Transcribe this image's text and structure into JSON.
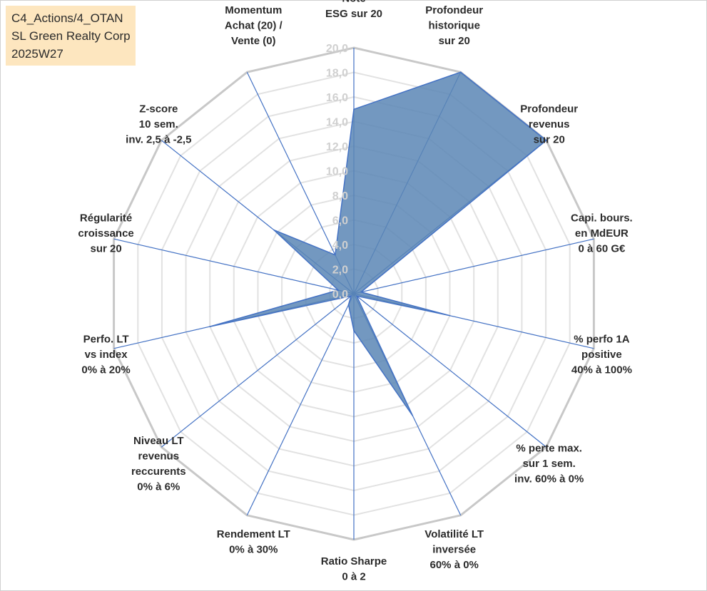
{
  "header": {
    "line1": "C4_Actions/4_OTAN",
    "line2": "SL Green Realty Corp",
    "line3": "2025W27"
  },
  "chart_data": {
    "type": "radar",
    "ylim": [
      0,
      20
    ],
    "tick_step": 2,
    "tick_labels": [
      "0,0",
      "2,0",
      "4,0",
      "6,0",
      "8,0",
      "10,0",
      "12,0",
      "14,0",
      "16,0",
      "18,0",
      "20,0"
    ],
    "grid": true,
    "legend": "none",
    "axes": [
      {
        "label": [
          "Note",
          "ESG sur 20"
        ],
        "value": 15.0
      },
      {
        "label": [
          "Profondeur",
          "historique",
          "sur 20"
        ],
        "value": 20.0
      },
      {
        "label": [
          "Profondeur",
          "revenus",
          "sur 20"
        ],
        "value": 20.0
      },
      {
        "label": [
          "Capi. bours.",
          "en MdEUR",
          "0 à 60 G€"
        ],
        "value": 0.6
      },
      {
        "label": [
          "% perfo 1A",
          "positive",
          "40% à 100%"
        ],
        "value": 8.0
      },
      {
        "label": [
          "% perte max.",
          "sur 1 sem.",
          "inv. 60% à 0%"
        ],
        "value": 0.3
      },
      {
        "label": [
          "Volatilité LT",
          "inversée",
          "60% à 0%"
        ],
        "value": 11.0
      },
      {
        "label": [
          "Ratio Sharpe",
          "0 à 2"
        ],
        "value": 3.0
      },
      {
        "label": [
          "Rendement LT",
          "0% à 30%"
        ],
        "value": 1.0
      },
      {
        "label": [
          "Niveau LT",
          "revenus",
          "reccurents",
          "0% à 6%"
        ],
        "value": 0.3
      },
      {
        "label": [
          "Perfo. LT",
          "vs index",
          "0% à 20%"
        ],
        "value": 12.0
      },
      {
        "label": [
          "Régularité",
          "croissance",
          "sur 20"
        ],
        "value": 1.3
      },
      {
        "label": [
          "Z-score",
          "10 sem.",
          "inv. 2,5 à -2,5"
        ],
        "value": 8.3
      },
      {
        "label": [
          "Momentum",
          "Achat (20) /",
          "Vente (0)"
        ],
        "value": 3.5
      }
    ],
    "colors": {
      "fill": "#5b86b5",
      "edge": "#4472c4",
      "spoke": "#4472c4",
      "grid_major": "#c8c8c8",
      "grid_minor": "#e2e2e2"
    }
  }
}
